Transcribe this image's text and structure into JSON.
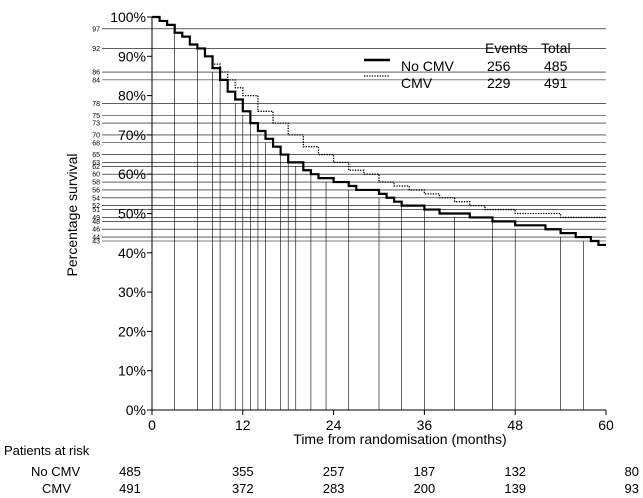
{
  "chart_data": {
    "type": "line",
    "xlabel": "Time from randomisation (months)",
    "ylabel": "Percentage survival",
    "xlim": [
      0,
      60
    ],
    "ylim": [
      0,
      100
    ],
    "x_ticks": [
      "0",
      "12",
      "24",
      "36",
      "48",
      "60"
    ],
    "y_ticks": [
      "0%",
      "10%",
      "20%",
      "30%",
      "40%",
      "50%",
      "60%",
      "70%",
      "80%",
      "90%",
      "100%"
    ],
    "legend": {
      "headers": [
        "Events",
        "Total"
      ],
      "rows": [
        {
          "name": "No CMV",
          "events": "256",
          "total": "485"
        },
        {
          "name": "CMV",
          "events": "229",
          "total": "491"
        }
      ]
    },
    "series": [
      {
        "name": "No CMV",
        "style": "solid",
        "x": [
          0,
          1,
          2,
          3,
          4,
          5,
          6,
          7,
          8,
          9,
          10,
          11,
          12,
          13,
          14,
          15,
          16,
          17,
          18,
          20,
          21,
          22,
          24,
          26,
          27,
          28,
          30,
          31,
          32,
          33,
          34,
          36,
          38,
          40,
          42,
          44,
          45,
          47,
          48,
          50,
          52,
          54,
          56,
          58,
          59,
          60
        ],
        "y": [
          100,
          99,
          98,
          96,
          95,
          93,
          92,
          90,
          87,
          84,
          81,
          79,
          76,
          73,
          71,
          69,
          67,
          65,
          63,
          61,
          60,
          59,
          58,
          57,
          56,
          56,
          55,
          54,
          53,
          52,
          52,
          51,
          50,
          50,
          49,
          49,
          48,
          48,
          47,
          47,
          46,
          45,
          44,
          43,
          42,
          42
        ]
      },
      {
        "name": "CMV",
        "style": "dotted",
        "x": [
          0,
          1,
          2,
          3,
          4,
          5,
          6,
          7,
          8,
          9,
          10,
          11,
          12,
          14,
          16,
          18,
          20,
          22,
          24,
          26,
          28,
          30,
          32,
          34,
          36,
          38,
          40,
          42,
          44,
          46,
          48,
          52,
          54,
          56,
          60
        ],
        "y": [
          100,
          99,
          98,
          96,
          95,
          93,
          92,
          90,
          88,
          86,
          84,
          82,
          80,
          76,
          73,
          70,
          67,
          65,
          63,
          61,
          60,
          58,
          57,
          56,
          55,
          54,
          53,
          52,
          51,
          51,
          50,
          50,
          49,
          49,
          49
        ]
      }
    ],
    "reference_levels": [
      {
        "label": "97",
        "month": 3
      },
      {
        "label": "92",
        "month": 6
      },
      {
        "label": "86",
        "month": 8
      },
      {
        "label": "84",
        "month": 9
      },
      {
        "label": "78",
        "month": 11
      },
      {
        "label": "75",
        "month": 12
      },
      {
        "label": "73",
        "month": 13
      },
      {
        "label": "70",
        "month": 14
      },
      {
        "label": "68",
        "month": 15
      },
      {
        "label": "65",
        "month": 17
      },
      {
        "label": "63",
        "month": 18
      },
      {
        "label": "62",
        "month": 19
      },
      {
        "label": "60",
        "month": 21
      },
      {
        "label": "58",
        "month": 23
      },
      {
        "label": "56",
        "month": 26
      },
      {
        "label": "54",
        "month": 30
      },
      {
        "label": "52",
        "month": 33
      },
      {
        "label": "51",
        "month": 36
      },
      {
        "label": "49",
        "month": 40
      },
      {
        "label": "48",
        "month": 45
      },
      {
        "label": "46",
        "month": 48
      },
      {
        "label": "44",
        "month": 54
      },
      {
        "label": "43",
        "month": 57
      }
    ],
    "risk_table": {
      "title": "Patients at risk",
      "months": [
        0,
        12,
        24,
        36,
        48,
        60
      ],
      "rows": [
        {
          "name": "No CMV",
          "values": [
            "485",
            "355",
            "257",
            "187",
            "132",
            "80"
          ]
        },
        {
          "name": "CMV",
          "values": [
            "491",
            "372",
            "283",
            "200",
            "139",
            "93"
          ]
        }
      ]
    }
  }
}
